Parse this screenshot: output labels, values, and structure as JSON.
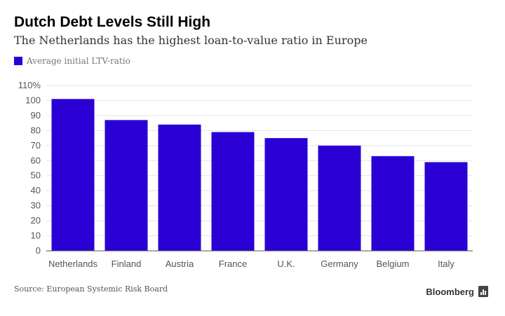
{
  "title": "Dutch Debt Levels Still High",
  "subtitle": "The Netherlands has the highest loan-to-value ratio in Europe",
  "source": "Source: European Systemic Risk Board",
  "brand": "Bloomberg",
  "colors": {
    "bar": "#2a00d5",
    "grid": "#e3e3e3",
    "axis": "#555555",
    "tick_text": "#555555"
  },
  "chart_data": {
    "type": "bar",
    "categories": [
      "Netherlands",
      "Finland",
      "Austria",
      "France",
      "U.K.",
      "Germany",
      "Belgium",
      "Italy"
    ],
    "series": [
      {
        "name": "Average initial LTV-ratio",
        "values": [
          101,
          87,
          84,
          79,
          75,
          70,
          63,
          59
        ]
      }
    ],
    "y_ticks": [
      "0",
      "10",
      "20",
      "30",
      "40",
      "50",
      "60",
      "70",
      "80",
      "90",
      "100",
      "110%"
    ],
    "ylim": [
      0,
      110
    ],
    "grid": true,
    "legend_position": "top-left"
  }
}
